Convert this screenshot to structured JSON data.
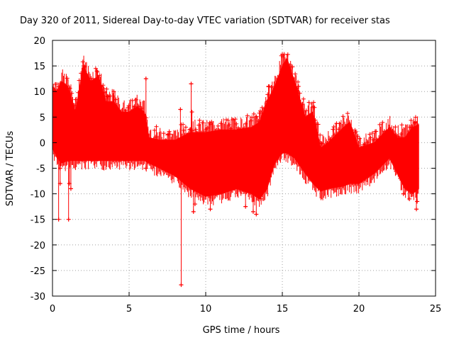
{
  "chart_data": {
    "type": "scatter",
    "title": "Day 320 of 2011, Sidereal Day-to-day VTEC variation (SDTVAR) for receiver stas",
    "xlabel": "GPS time / hours",
    "ylabel": "SDTVAR / TECUs",
    "xlim": [
      0,
      25
    ],
    "ylim": [
      -30,
      20
    ],
    "x_ticks": [
      0,
      5,
      10,
      15,
      20,
      25
    ],
    "y_ticks": [
      -30,
      -25,
      -20,
      -15,
      -10,
      -5,
      0,
      5,
      10,
      15,
      20
    ],
    "grid": true,
    "marker": "+",
    "series": [
      {
        "name": "SDTVAR",
        "color": "#ff0000",
        "envelope": {
          "x": [
            0.0,
            0.3,
            0.6,
            1.0,
            1.5,
            2.0,
            2.5,
            3.0,
            3.5,
            4.0,
            4.5,
            5.0,
            5.5,
            6.0,
            6.3,
            7.0,
            8.0,
            9.0,
            10.0,
            11.0,
            12.0,
            13.0,
            13.5,
            14.0,
            14.5,
            15.0,
            15.3,
            15.8,
            16.5,
            17.0,
            17.5,
            18.0,
            19.0,
            19.4,
            20.0,
            21.0,
            22.0,
            22.5,
            23.0,
            23.5,
            23.9
          ],
          "upper": [
            11.0,
            10.0,
            12.0,
            11.0,
            6.0,
            15.0,
            12.0,
            13.0,
            8.0,
            8.0,
            6.0,
            6.0,
            7.0,
            6.0,
            1.0,
            0.5,
            0.5,
            2.0,
            2.0,
            2.5,
            2.5,
            3.0,
            4.0,
            8.0,
            11.0,
            15.0,
            16.5,
            12.0,
            5.0,
            6.0,
            -1.0,
            0.0,
            3.0,
            4.0,
            -1.0,
            0.0,
            3.0,
            1.0,
            1.0,
            3.0,
            3.5
          ],
          "lower": [
            -1.0,
            -3.0,
            -4.0,
            -3.5,
            -3.5,
            -3.5,
            -3.5,
            -3.5,
            -3.5,
            -3.5,
            -3.5,
            -3.5,
            -3.5,
            -3.5,
            -4.0,
            -5.0,
            -6.5,
            -9.0,
            -10.5,
            -10.0,
            -9.0,
            -10.0,
            -11.0,
            -9.0,
            -4.0,
            -2.0,
            -2.0,
            -3.0,
            -6.0,
            -8.0,
            -9.5,
            -9.0,
            -8.5,
            -8.0,
            -8.0,
            -6.0,
            -3.0,
            -6.0,
            -9.0,
            -10.0,
            -9.0
          ]
        },
        "outliers": [
          {
            "x": 0.45,
            "y": 10.0
          },
          {
            "x": 0.5,
            "y": -5.0
          },
          {
            "x": 0.5,
            "y": -8.0
          },
          {
            "x": 0.4,
            "y": -15.0
          },
          {
            "x": 1.05,
            "y": -15.0
          },
          {
            "x": 1.2,
            "y": -9.0
          },
          {
            "x": 1.1,
            "y": -8.0
          },
          {
            "x": 2.05,
            "y": 15.0
          },
          {
            "x": 2.9,
            "y": 14.0
          },
          {
            "x": 3.6,
            "y": 9.0
          },
          {
            "x": 4.0,
            "y": 10.0
          },
          {
            "x": 6.1,
            "y": 12.5
          },
          {
            "x": 6.1,
            "y": -5.0
          },
          {
            "x": 8.35,
            "y": 6.5
          },
          {
            "x": 8.4,
            "y": -27.8
          },
          {
            "x": 8.6,
            "y": -7.0
          },
          {
            "x": 9.05,
            "y": 11.5
          },
          {
            "x": 9.1,
            "y": 6.0
          },
          {
            "x": 9.2,
            "y": -13.5
          },
          {
            "x": 9.3,
            "y": -12.0
          },
          {
            "x": 10.3,
            "y": -13.0
          },
          {
            "x": 11.0,
            "y": 1.0
          },
          {
            "x": 12.6,
            "y": -12.5
          },
          {
            "x": 13.1,
            "y": -13.5
          },
          {
            "x": 13.3,
            "y": -14.0
          },
          {
            "x": 13.6,
            "y": -11.0
          },
          {
            "x": 14.0,
            "y": 8.0
          },
          {
            "x": 14.1,
            "y": 11.0
          },
          {
            "x": 16.05,
            "y": 11.0
          },
          {
            "x": 17.0,
            "y": 7.0
          },
          {
            "x": 22.2,
            "y": 1.5
          },
          {
            "x": 22.7,
            "y": -7.0
          },
          {
            "x": 22.9,
            "y": -10.0
          },
          {
            "x": 23.3,
            "y": -11.0
          },
          {
            "x": 23.5,
            "y": 3.0
          },
          {
            "x": 23.7,
            "y": 4.0
          },
          {
            "x": 23.8,
            "y": -11.5
          },
          {
            "x": 23.75,
            "y": -13.0
          }
        ]
      }
    ]
  }
}
